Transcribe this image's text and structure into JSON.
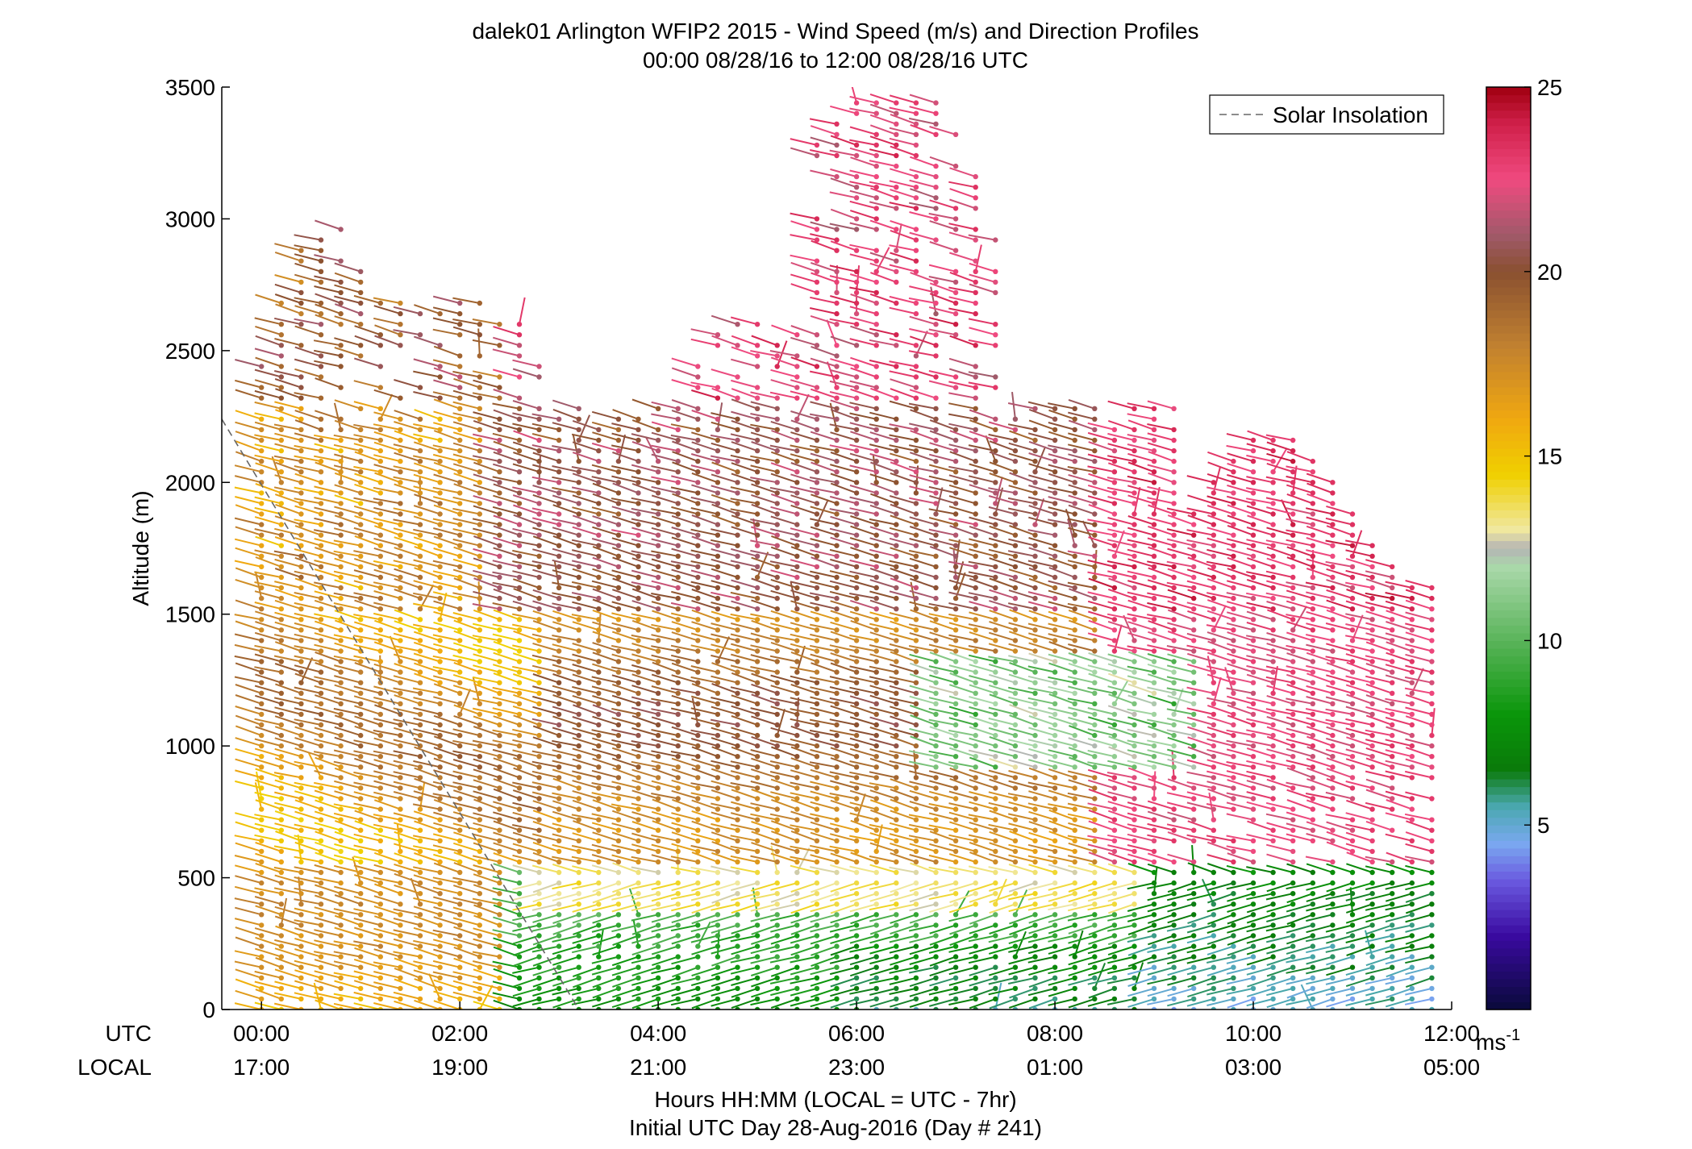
{
  "chart_data": {
    "type": "scatter",
    "title": "dalek01 Arlington WFIP2 2015 - Wind Speed (m/s) and Direction Profiles",
    "subtitle": "00:00 08/28/16 to 12:00 08/28/16  UTC",
    "ylabel": "Altitude (m)",
    "xlabel": "Hours HH:MM  (LOCAL = UTC - 7hr)",
    "xlabel2": "Initial UTC Day 28-Aug-2016 (Day # 241)",
    "x_row_labels": [
      "UTC",
      "LOCAL"
    ],
    "xlim_hours": [
      -0.4,
      12.0
    ],
    "ylim": [
      0,
      3500
    ],
    "y_ticks": [
      {
        "v": 0,
        "t": "0"
      },
      {
        "v": 500,
        "t": "500"
      },
      {
        "v": 1000,
        "t": "1000"
      },
      {
        "v": 1500,
        "t": "1500"
      },
      {
        "v": 2000,
        "t": "2000"
      },
      {
        "v": 2500,
        "t": "2500"
      },
      {
        "v": 3000,
        "t": "3000"
      },
      {
        "v": 3500,
        "t": "3500"
      }
    ],
    "x_ticks": [
      {
        "h": 0,
        "utc": "00:00",
        "local": "17:00"
      },
      {
        "h": 2,
        "utc": "02:00",
        "local": "19:00"
      },
      {
        "h": 4,
        "utc": "04:00",
        "local": "21:00"
      },
      {
        "h": 6,
        "utc": "06:00",
        "local": "23:00"
      },
      {
        "h": 8,
        "utc": "08:00",
        "local": "01:00"
      },
      {
        "h": 10,
        "utc": "10:00",
        "local": "03:00"
      },
      {
        "h": 12,
        "utc": "12:00",
        "local": "05:00"
      }
    ],
    "legend": {
      "label": "Solar Insolation",
      "placement": "top-right",
      "style": "dashed",
      "color": "#666666"
    },
    "solar_insolation_line": [
      {
        "h": -0.4,
        "alt": 2240
      },
      {
        "h": 3.2,
        "alt": 0
      }
    ],
    "colorbar": {
      "label": "ms-1",
      "range": [
        0,
        25
      ],
      "ticks": [
        {
          "v": 5,
          "t": "5"
        },
        {
          "v": 10,
          "t": "10"
        },
        {
          "v": 15,
          "t": "15"
        },
        {
          "v": 20,
          "t": "20"
        },
        {
          "v": 25,
          "t": "25"
        }
      ],
      "stops": [
        {
          "v": 0,
          "c": "#0a0a3a"
        },
        {
          "v": 2,
          "c": "#3a0aa0"
        },
        {
          "v": 3.5,
          "c": "#6a5ae0"
        },
        {
          "v": 4.5,
          "c": "#7aa8f0"
        },
        {
          "v": 5.5,
          "c": "#4aa8b0"
        },
        {
          "v": 6.5,
          "c": "#0a7a0a"
        },
        {
          "v": 8,
          "c": "#0a960a"
        },
        {
          "v": 10,
          "c": "#5ab45a"
        },
        {
          "v": 12,
          "c": "#aad8aa"
        },
        {
          "v": 12.5,
          "c": "#b4b4b4"
        },
        {
          "v": 13,
          "c": "#f0e8a0"
        },
        {
          "v": 14.5,
          "c": "#f0d000"
        },
        {
          "v": 16,
          "c": "#f0a810"
        },
        {
          "v": 18,
          "c": "#c08030"
        },
        {
          "v": 20,
          "c": "#8a5030"
        },
        {
          "v": 21,
          "c": "#a05a6a"
        },
        {
          "v": 22.5,
          "c": "#f04a80"
        },
        {
          "v": 24,
          "c": "#d0204a"
        },
        {
          "v": 25,
          "c": "#a00010"
        }
      ]
    },
    "profiles": {
      "time_step_hours": 0.2,
      "start_hour": 0,
      "end_hour": 11.8,
      "altitude_step_m": 40,
      "note": "Wind barbs: one barb per (time, altitude) sample; color = wind speed (m/s), line direction = wind direction."
    }
  }
}
